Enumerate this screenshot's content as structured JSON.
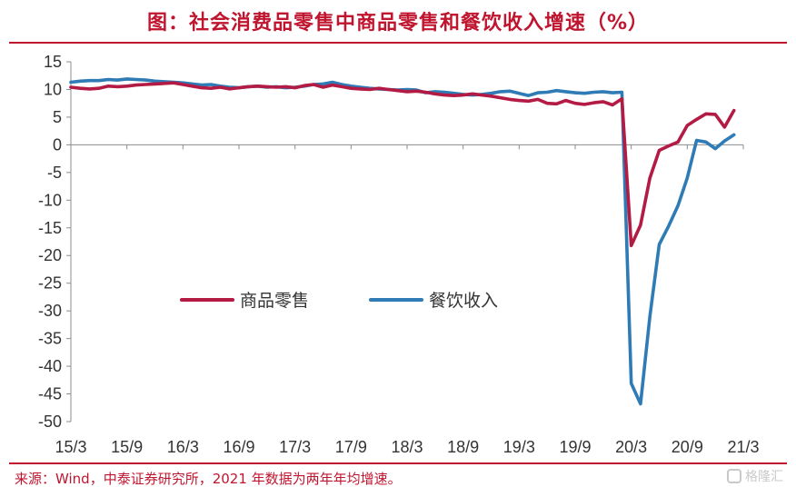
{
  "header": {
    "title": "图：社会消费品零售中商品零售和餐饮收入增速（%）"
  },
  "footer": {
    "source": "来源：Wind，中泰证券研究所，2021 年数据为两年年均增速。"
  },
  "watermark": {
    "text": "格隆汇",
    "icon": "app-logo-icon"
  },
  "chart_data": {
    "type": "line",
    "title": "图：社会消费品零售中商品零售和餐饮收入增速（%）",
    "xlabel": "",
    "ylabel": "",
    "ylim": [
      -50,
      15
    ],
    "yticks": [
      "15",
      "10",
      "5",
      "0",
      "-5",
      "-10",
      "-15",
      "-20",
      "-25",
      "-30",
      "-35",
      "-40",
      "-45",
      "-50"
    ],
    "x_tick_labels": [
      "15/3",
      "15/9",
      "16/3",
      "16/9",
      "17/3",
      "17/9",
      "18/3",
      "18/9",
      "19/3",
      "19/9",
      "20/3",
      "20/9",
      "21/3"
    ],
    "x_tick_index": [
      0,
      6,
      12,
      18,
      24,
      30,
      36,
      42,
      48,
      54,
      60,
      66,
      72
    ],
    "grid": false,
    "legend_position": "center-left",
    "series": [
      {
        "name": "商品零售",
        "color": "#b31b44",
        "values": [
          10.4,
          10.2,
          10.1,
          10.2,
          10.6,
          10.5,
          10.6,
          10.8,
          10.9,
          11.0,
          11.1,
          11.2,
          10.9,
          10.6,
          10.3,
          10.2,
          10.4,
          10.1,
          10.3,
          10.5,
          10.6,
          10.5,
          10.4,
          10.5,
          10.3,
          10.7,
          10.9,
          10.4,
          10.8,
          10.5,
          10.2,
          10.1,
          10.0,
          10.2,
          10.0,
          9.8,
          9.6,
          9.7,
          9.5,
          9.2,
          9.0,
          8.9,
          9.0,
          9.2,
          9.0,
          8.8,
          8.5,
          8.2,
          8.0,
          7.9,
          8.2,
          7.5,
          7.4,
          8.0,
          7.5,
          7.3,
          7.6,
          7.8,
          7.2,
          8.3,
          -18.2,
          -14.5,
          -6.0,
          -1.0,
          -0.2,
          0.5,
          3.5,
          4.6,
          5.6,
          5.5,
          3.2,
          6.2,
          null
        ]
      },
      {
        "name": "餐饮收入",
        "color": "#2e7bb5",
        "values": [
          11.3,
          11.5,
          11.6,
          11.6,
          11.8,
          11.7,
          11.9,
          11.8,
          11.7,
          11.5,
          11.4,
          11.3,
          11.2,
          11.0,
          10.8,
          10.9,
          10.6,
          10.4,
          10.3,
          10.5,
          10.6,
          10.4,
          10.5,
          10.3,
          10.4,
          10.6,
          10.9,
          11.0,
          11.3,
          10.9,
          10.6,
          10.4,
          10.2,
          10.1,
          10.0,
          9.9,
          10.0,
          9.9,
          9.4,
          9.6,
          9.5,
          9.3,
          9.1,
          9.0,
          9.1,
          9.3,
          9.6,
          9.7,
          9.3,
          8.9,
          9.4,
          9.5,
          9.8,
          9.6,
          9.4,
          9.3,
          9.5,
          9.6,
          9.4,
          9.5,
          -43.1,
          -46.8,
          -31.0,
          -18.0,
          -14.7,
          -11.0,
          -6.0,
          0.8,
          0.5,
          -0.7,
          0.7,
          1.8,
          null
        ]
      }
    ]
  }
}
